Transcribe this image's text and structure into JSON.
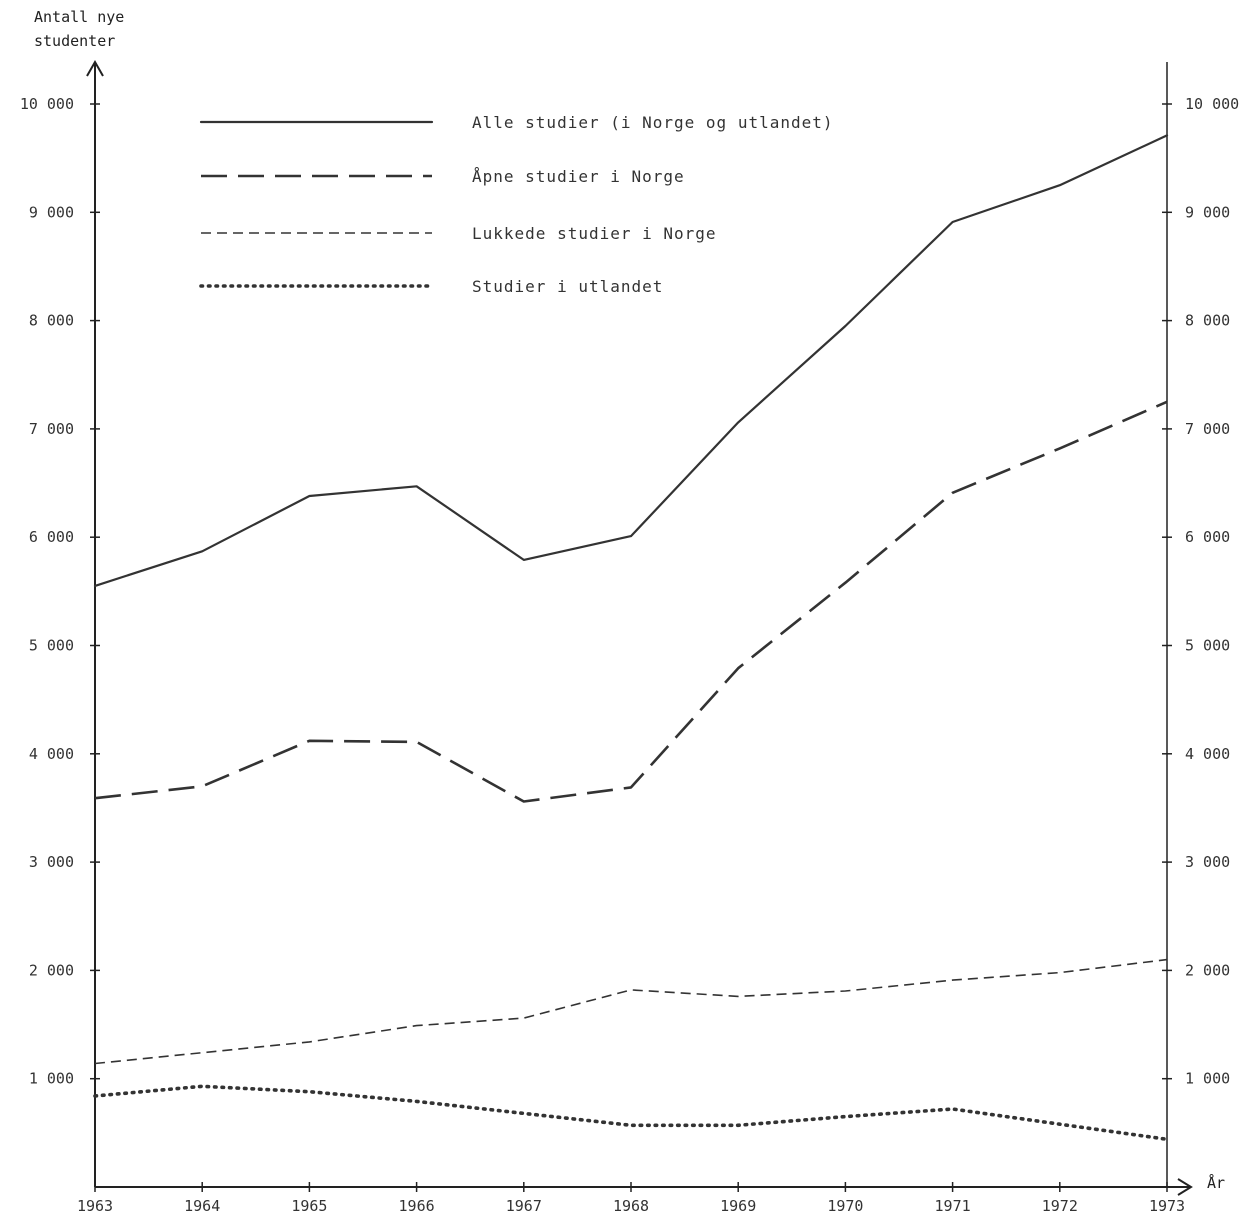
{
  "chart_data": {
    "type": "line",
    "title": "",
    "ylabel_line1": "Antall nye",
    "ylabel_line2": "studenter",
    "xlabel": "År",
    "x": [
      1963,
      1964,
      1965,
      1966,
      1967,
      1968,
      1969,
      1970,
      1971,
      1972,
      1973
    ],
    "ylim": [
      0,
      10000
    ],
    "yticks": [
      1000,
      2000,
      3000,
      4000,
      5000,
      6000,
      7000,
      8000,
      9000,
      10000
    ],
    "ytick_labels_left": [
      "1 000",
      "2 000",
      "3 000",
      "4 000",
      "5 000",
      "6 000",
      "7 000",
      "8 000",
      "9 000",
      "10 000"
    ],
    "ytick_labels_right": [
      "1 000",
      "2 000",
      "3 000",
      "4 000",
      "5 000",
      "6 000",
      "7 000",
      "8 000",
      "9 000",
      "10 000"
    ],
    "legend_position": "top-left",
    "series": [
      {
        "name": "Alle studier (i Norge og utlandet)",
        "style": "solid",
        "values": [
          5550,
          5870,
          6380,
          6470,
          5790,
          6010,
          7060,
          7950,
          8910,
          9250,
          9710
        ]
      },
      {
        "name": "Åpne studier i Norge",
        "style": "long-dash",
        "values": [
          3590,
          3700,
          4120,
          4110,
          3560,
          3690,
          4790,
          5580,
          6410,
          6820,
          7250
        ]
      },
      {
        "name": "Lukkede studier i Norge",
        "style": "short-dash",
        "values": [
          1140,
          1240,
          1340,
          1490,
          1560,
          1820,
          1760,
          1810,
          1910,
          1980,
          2100
        ]
      },
      {
        "name": "Studier i utlandet",
        "style": "dotted",
        "values": [
          840,
          930,
          880,
          790,
          680,
          570,
          570,
          650,
          720,
          580,
          440
        ]
      }
    ],
    "colors": {
      "line": "#333333",
      "axis": "#222222"
    }
  }
}
